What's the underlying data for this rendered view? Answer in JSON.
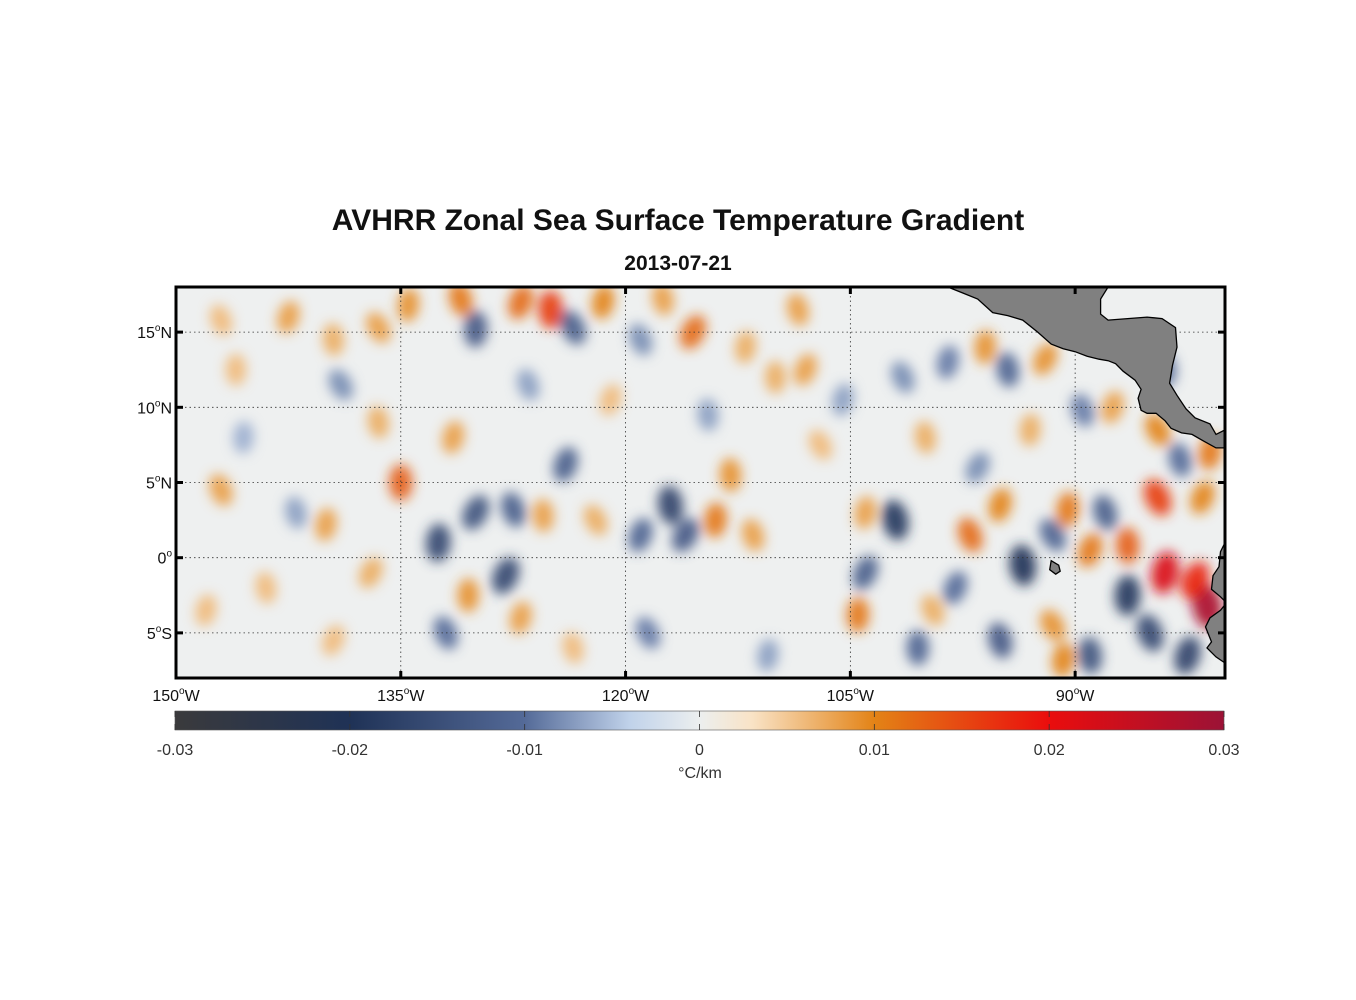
{
  "title": "AVHRR Zonal Sea Surface Temperature Gradient",
  "date": "2013-07-21",
  "map": {
    "lon_range": [
      -150,
      -80
    ],
    "lat_range": [
      -8,
      18
    ],
    "grid": true,
    "lat_ticks": [
      {
        "value": 15,
        "deg": "15",
        "hemi": "N"
      },
      {
        "value": 10,
        "deg": "10",
        "hemi": "N"
      },
      {
        "value": 5,
        "deg": "5",
        "hemi": "N"
      },
      {
        "value": 0,
        "deg": "0",
        "hemi": ""
      },
      {
        "value": -5,
        "deg": "5",
        "hemi": "S"
      }
    ],
    "lon_ticks": [
      {
        "value": -150,
        "deg": "150",
        "hemi": "W"
      },
      {
        "value": -135,
        "deg": "135",
        "hemi": "W"
      },
      {
        "value": -120,
        "deg": "120",
        "hemi": "W"
      },
      {
        "value": -105,
        "deg": "105",
        "hemi": "W"
      },
      {
        "value": -90,
        "deg": "90",
        "hemi": "W"
      }
    ],
    "land_color": "#808080",
    "features": [
      {
        "lon": -136.5,
        "lat": 15.3,
        "v": 0.008
      },
      {
        "lon": -134.5,
        "lat": 16.8,
        "v": 0.009
      },
      {
        "lon": -131.0,
        "lat": 17.2,
        "v": 0.011
      },
      {
        "lon": -127.0,
        "lat": 17.0,
        "v": 0.012
      },
      {
        "lon": -125.0,
        "lat": 16.5,
        "v": 0.016
      },
      {
        "lon": -123.5,
        "lat": 15.3,
        "v": -0.012
      },
      {
        "lon": -121.5,
        "lat": 17.0,
        "v": 0.01
      },
      {
        "lon": -117.5,
        "lat": 17.2,
        "v": 0.008
      },
      {
        "lon": -115.5,
        "lat": 15.0,
        "v": 0.012
      },
      {
        "lon": -130.0,
        "lat": 15.2,
        "v": -0.013
      },
      {
        "lon": -147.0,
        "lat": 15.8,
        "v": 0.006
      },
      {
        "lon": -142.5,
        "lat": 16.0,
        "v": 0.008
      },
      {
        "lon": -139.5,
        "lat": 14.5,
        "v": 0.007
      },
      {
        "lon": -139.0,
        "lat": 11.5,
        "v": -0.008
      },
      {
        "lon": -112.0,
        "lat": 14.0,
        "v": 0.007
      },
      {
        "lon": -108.5,
        "lat": 16.5,
        "v": 0.008
      },
      {
        "lon": -108.0,
        "lat": 12.5,
        "v": 0.008
      },
      {
        "lon": -110.0,
        "lat": 12.0,
        "v": 0.007
      },
      {
        "lon": -101.5,
        "lat": 12.0,
        "v": -0.008
      },
      {
        "lon": -98.5,
        "lat": 13.0,
        "v": -0.009
      },
      {
        "lon": -94.5,
        "lat": 12.5,
        "v": -0.011
      },
      {
        "lon": -92.0,
        "lat": 13.2,
        "v": 0.009
      },
      {
        "lon": -96.0,
        "lat": 14.0,
        "v": 0.009
      },
      {
        "lon": -89.5,
        "lat": 9.8,
        "v": -0.009
      },
      {
        "lon": -87.5,
        "lat": 10.0,
        "v": 0.008
      },
      {
        "lon": -84.0,
        "lat": 12.5,
        "v": -0.01
      },
      {
        "lon": -84.5,
        "lat": 8.5,
        "v": 0.01
      },
      {
        "lon": -81.0,
        "lat": 7.0,
        "v": 0.011
      },
      {
        "lon": -83.0,
        "lat": 6.5,
        "v": -0.01
      },
      {
        "lon": -81.5,
        "lat": 4.0,
        "v": 0.01
      },
      {
        "lon": -135.0,
        "lat": 5.0,
        "v": 0.013
      },
      {
        "lon": -147.0,
        "lat": 4.5,
        "v": 0.008
      },
      {
        "lon": -131.5,
        "lat": 8.0,
        "v": 0.008
      },
      {
        "lon": -136.5,
        "lat": 9.0,
        "v": 0.007
      },
      {
        "lon": -130.0,
        "lat": 3.0,
        "v": -0.014
      },
      {
        "lon": -132.5,
        "lat": 1.0,
        "v": -0.016
      },
      {
        "lon": -127.5,
        "lat": 3.2,
        "v": -0.012
      },
      {
        "lon": -124.0,
        "lat": 6.2,
        "v": -0.012
      },
      {
        "lon": -125.5,
        "lat": 2.8,
        "v": 0.008
      },
      {
        "lon": -122.0,
        "lat": 2.5,
        "v": 0.007
      },
      {
        "lon": -140.0,
        "lat": 2.2,
        "v": 0.008
      },
      {
        "lon": -142.0,
        "lat": 3.0,
        "v": -0.007
      },
      {
        "lon": -128.0,
        "lat": -1.2,
        "v": -0.016
      },
      {
        "lon": -130.5,
        "lat": -2.5,
        "v": 0.009
      },
      {
        "lon": -132.0,
        "lat": -5.0,
        "v": -0.01
      },
      {
        "lon": -127.0,
        "lat": -4.0,
        "v": 0.008
      },
      {
        "lon": -117.0,
        "lat": 3.5,
        "v": -0.017
      },
      {
        "lon": -116.0,
        "lat": 1.5,
        "v": -0.013
      },
      {
        "lon": -114.0,
        "lat": 2.5,
        "v": 0.011
      },
      {
        "lon": -111.5,
        "lat": 1.5,
        "v": 0.008
      },
      {
        "lon": -119.0,
        "lat": 1.5,
        "v": -0.011
      },
      {
        "lon": -113.0,
        "lat": 5.5,
        "v": 0.009
      },
      {
        "lon": -118.5,
        "lat": -5.0,
        "v": -0.009
      },
      {
        "lon": -104.0,
        "lat": 3.0,
        "v": 0.008
      },
      {
        "lon": -102.0,
        "lat": 2.5,
        "v": -0.019
      },
      {
        "lon": -104.0,
        "lat": -1.0,
        "v": -0.012
      },
      {
        "lon": -104.5,
        "lat": -3.8,
        "v": 0.011
      },
      {
        "lon": -97.0,
        "lat": 1.5,
        "v": 0.012
      },
      {
        "lon": -95.0,
        "lat": 3.5,
        "v": 0.01
      },
      {
        "lon": -93.5,
        "lat": -0.5,
        "v": -0.02
      },
      {
        "lon": -91.5,
        "lat": 1.5,
        "v": -0.011
      },
      {
        "lon": -90.5,
        "lat": 3.2,
        "v": 0.011
      },
      {
        "lon": -88.0,
        "lat": 3.0,
        "v": -0.012
      },
      {
        "lon": -89.0,
        "lat": 0.5,
        "v": 0.011
      },
      {
        "lon": -86.5,
        "lat": 0.8,
        "v": 0.013
      },
      {
        "lon": -84.5,
        "lat": 4.0,
        "v": 0.016
      },
      {
        "lon": -84.0,
        "lat": -1.0,
        "v": 0.022
      },
      {
        "lon": -81.2,
        "lat": -3.2,
        "v": 0.028
      },
      {
        "lon": -82.0,
        "lat": -1.5,
        "v": 0.018
      },
      {
        "lon": -86.5,
        "lat": -2.5,
        "v": -0.019
      },
      {
        "lon": -85.0,
        "lat": -5.0,
        "v": -0.016
      },
      {
        "lon": -82.5,
        "lat": -6.5,
        "v": -0.017
      },
      {
        "lon": -89.0,
        "lat": -6.5,
        "v": -0.014
      },
      {
        "lon": -91.5,
        "lat": -4.5,
        "v": 0.009
      },
      {
        "lon": -90.8,
        "lat": -6.8,
        "v": 0.01
      },
      {
        "lon": -95.0,
        "lat": -5.5,
        "v": -0.013
      },
      {
        "lon": -98.0,
        "lat": -2.0,
        "v": -0.01
      },
      {
        "lon": -100.5,
        "lat": -6.0,
        "v": -0.011
      },
      {
        "lon": -99.5,
        "lat": -3.5,
        "v": 0.007
      },
      {
        "lon": -148.0,
        "lat": -3.5,
        "v": 0.006
      },
      {
        "lon": -144.0,
        "lat": -2.0,
        "v": 0.006
      },
      {
        "lon": -137.0,
        "lat": -1.0,
        "v": 0.007
      },
      {
        "lon": -145.5,
        "lat": 8.0,
        "v": -0.006
      },
      {
        "lon": -126.5,
        "lat": 11.5,
        "v": -0.007
      },
      {
        "lon": -121.0,
        "lat": 10.5,
        "v": 0.006
      },
      {
        "lon": -114.5,
        "lat": 9.5,
        "v": -0.007
      },
      {
        "lon": -107.0,
        "lat": 7.5,
        "v": 0.006
      },
      {
        "lon": -110.5,
        "lat": -6.5,
        "v": -0.007
      },
      {
        "lon": -123.5,
        "lat": -6.0,
        "v": 0.006
      },
      {
        "lon": -139.5,
        "lat": -5.5,
        "v": 0.006
      },
      {
        "lon": -146.0,
        "lat": 12.5,
        "v": 0.006
      },
      {
        "lon": -119.0,
        "lat": 14.5,
        "v": -0.008
      },
      {
        "lon": -105.5,
        "lat": 10.5,
        "v": -0.007
      },
      {
        "lon": -100.0,
        "lat": 8.0,
        "v": 0.007
      },
      {
        "lon": -96.5,
        "lat": 6.0,
        "v": -0.008
      },
      {
        "lon": -93.0,
        "lat": 8.5,
        "v": 0.007
      }
    ],
    "land": [
      {
        "name": "Central America",
        "points": [
          [
            -98.5,
            18
          ],
          [
            -97.5,
            17.6
          ],
          [
            -96.5,
            17.2
          ],
          [
            -95.5,
            16.3
          ],
          [
            -94.5,
            16.1
          ],
          [
            -93.5,
            15.8
          ],
          [
            -92.5,
            15.0
          ],
          [
            -91.6,
            14.2
          ],
          [
            -90.8,
            13.9
          ],
          [
            -90.0,
            13.7
          ],
          [
            -89.2,
            13.4
          ],
          [
            -88.4,
            13.2
          ],
          [
            -87.8,
            13.1
          ],
          [
            -87.3,
            12.9
          ],
          [
            -86.8,
            12.4
          ],
          [
            -86.0,
            11.8
          ],
          [
            -85.6,
            11.2
          ],
          [
            -85.8,
            10.6
          ],
          [
            -85.6,
            9.8
          ],
          [
            -85.2,
            9.6
          ],
          [
            -84.6,
            9.6
          ],
          [
            -84.0,
            9.1
          ],
          [
            -83.6,
            8.6
          ],
          [
            -82.9,
            8.3
          ],
          [
            -82.2,
            8.2
          ],
          [
            -81.5,
            7.8
          ],
          [
            -80.6,
            7.3
          ],
          [
            -80,
            7.3
          ],
          [
            -80,
            8.5
          ],
          [
            -80.6,
            8.2
          ],
          [
            -81.0,
            8.9
          ],
          [
            -82.0,
            9.3
          ],
          [
            -82.6,
            9.9
          ],
          [
            -83.2,
            10.8
          ],
          [
            -83.7,
            11.6
          ],
          [
            -83.5,
            12.8
          ],
          [
            -83.2,
            14.0
          ],
          [
            -83.3,
            15.3
          ],
          [
            -84.2,
            15.9
          ],
          [
            -85.2,
            16.0
          ],
          [
            -86.5,
            15.9
          ],
          [
            -87.8,
            15.8
          ],
          [
            -88.3,
            16.2
          ],
          [
            -88.3,
            17.2
          ],
          [
            -87.8,
            18
          ],
          [
            -98.5,
            18
          ]
        ]
      },
      {
        "name": "South America",
        "points": [
          [
            -80,
            1.0
          ],
          [
            -80.3,
            0.4
          ],
          [
            -80.4,
            -0.6
          ],
          [
            -80.8,
            -1.2
          ],
          [
            -80.9,
            -2.1
          ],
          [
            -80.3,
            -2.6
          ],
          [
            -79.9,
            -3.0
          ],
          [
            -80.3,
            -3.5
          ],
          [
            -81.0,
            -4.0
          ],
          [
            -81.3,
            -4.6
          ],
          [
            -80.9,
            -5.6
          ],
          [
            -81.2,
            -6.0
          ],
          [
            -80.6,
            -6.6
          ],
          [
            -80,
            -7.0
          ],
          [
            -80,
            1.0
          ]
        ]
      },
      {
        "name": "Galapagos",
        "points": [
          [
            -91.6,
            -0.2
          ],
          [
            -91.1,
            -0.5
          ],
          [
            -91.0,
            -0.9
          ],
          [
            -91.3,
            -1.1
          ],
          [
            -91.7,
            -0.8
          ],
          [
            -91.6,
            -0.2
          ]
        ]
      }
    ]
  },
  "colorbar": {
    "range": [
      -0.03,
      0.03
    ],
    "ticks": [
      {
        "value": -0.03,
        "label": "-0.03"
      },
      {
        "value": -0.02,
        "label": "-0.02"
      },
      {
        "value": -0.01,
        "label": "-0.01"
      },
      {
        "value": 0,
        "label": "0"
      },
      {
        "value": 0.01,
        "label": "0.01"
      },
      {
        "value": 0.02,
        "label": "0.02"
      },
      {
        "value": 0.03,
        "label": "0.03"
      }
    ],
    "unit": "°C/km",
    "stops": [
      {
        "v": -0.03,
        "color": "#3a3a3c"
      },
      {
        "v": -0.02,
        "color": "#1f3256"
      },
      {
        "v": -0.01,
        "color": "#546a98"
      },
      {
        "v": -0.004,
        "color": "#c0d2ea"
      },
      {
        "v": 0,
        "color": "#ecefef"
      },
      {
        "v": 0.003,
        "color": "#f9e3c6"
      },
      {
        "v": 0.01,
        "color": "#e38316"
      },
      {
        "v": 0.02,
        "color": "#ea0d0d"
      },
      {
        "v": 0.03,
        "color": "#9b1236"
      }
    ]
  }
}
